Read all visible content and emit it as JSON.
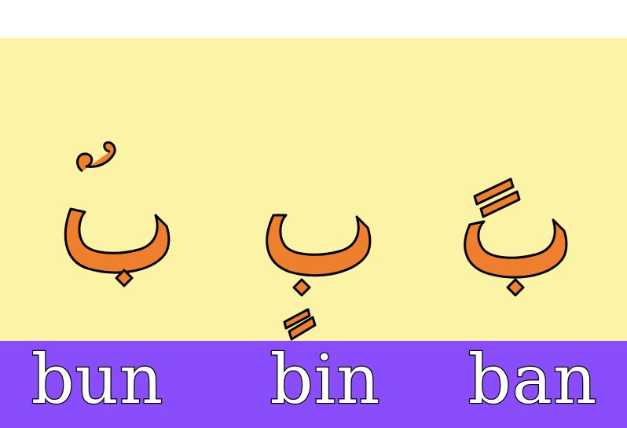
{
  "colors": {
    "page_bg": "#ffffff",
    "letter_panel_bg": "#fbf4a6",
    "word_band_bg": "#8a4dfb",
    "letter_fill": "#ee7f2c",
    "letter_outline": "#000000",
    "word_fill": "#ffffff",
    "word_outline": "#000000"
  },
  "cards": [
    {
      "letter": "بُ",
      "mark": "damma",
      "word": "bun"
    },
    {
      "letter": "بِ",
      "mark": "kasra",
      "word": "bin"
    },
    {
      "letter": "بَ",
      "mark": "fatha",
      "word": "ban"
    }
  ]
}
